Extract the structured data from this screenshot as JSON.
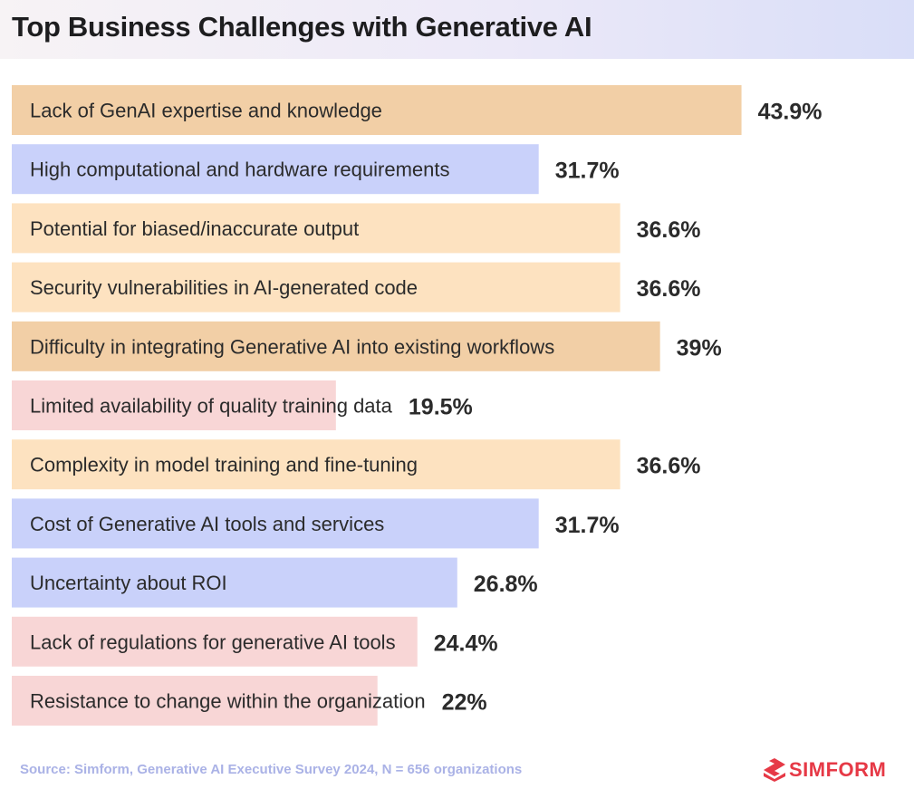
{
  "header": {
    "title": "Top Business Challenges with Generative AI"
  },
  "footer": {
    "source": "Source: Simform, Generative AI Executive Survey 2024, N = 656 organizations",
    "brand": "SIMFORM",
    "brand_color": "#e63946"
  },
  "colors": {
    "orange_dark": "#f2cfa6",
    "orange_light": "#fde2c0",
    "blue": "#c9d1fa",
    "pink": "#f8d6d6"
  },
  "chart_data": {
    "type": "bar",
    "orientation": "horizontal",
    "title": "Top Business Challenges with Generative AI",
    "xlim": [
      0,
      50
    ],
    "grid": false,
    "categories": [
      "Lack of GenAI expertise and knowledge",
      "High computational and hardware requirements",
      "Potential for biased/inaccurate output",
      "Security vulnerabilities in AI-generated code",
      "Difficulty in integrating Generative AI into existing workflows",
      "Limited availability of quality training data",
      "Complexity in model training and fine-tuning",
      "Cost of Generative AI tools and services",
      "Uncertainty about ROI",
      "Lack of regulations for generative AI tools",
      "Resistance to change within the organization"
    ],
    "values": [
      43.9,
      31.7,
      36.6,
      36.6,
      39,
      19.5,
      36.6,
      31.7,
      26.8,
      24.4,
      22
    ],
    "value_labels": [
      "43.9%",
      "31.7%",
      "36.6%",
      "36.6%",
      "39%",
      "19.5%",
      "36.6%",
      "31.7%",
      "26.8%",
      "24.4%",
      "22%"
    ],
    "bar_colors": [
      "#f2cfa6",
      "#c9d1fa",
      "#fde2c0",
      "#fde2c0",
      "#f2cfa6",
      "#f8d6d6",
      "#fde2c0",
      "#c9d1fa",
      "#c9d1fa",
      "#f8d6d6",
      "#f8d6d6"
    ]
  }
}
